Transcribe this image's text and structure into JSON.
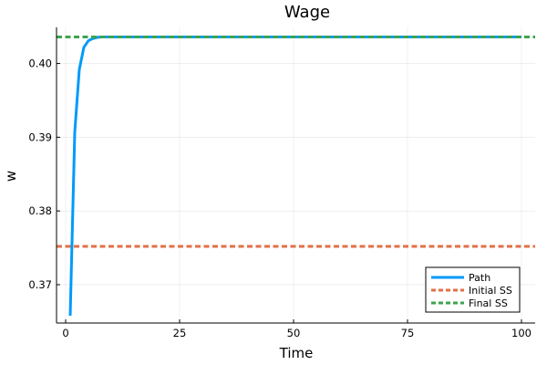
{
  "chart_data": {
    "type": "line",
    "title": "Wage",
    "xlabel": "Time",
    "ylabel": "w",
    "xlim": [
      -2,
      103
    ],
    "ylim": [
      0.3648,
      0.4049
    ],
    "xticks": [
      0,
      25,
      50,
      75,
      100
    ],
    "xtick_labels": [
      "0",
      "25",
      "50",
      "75",
      "100"
    ],
    "yticks": [
      0.37,
      0.38,
      0.39,
      0.4
    ],
    "ytick_labels": [
      "0.37",
      "0.38",
      "0.39",
      "0.40"
    ],
    "grid": true,
    "legend_position": "bottom-right",
    "series": [
      {
        "name": "Path",
        "color": "#009AFA",
        "style": "solid",
        "x": [
          1,
          2,
          3,
          4,
          5,
          6,
          7,
          8,
          9,
          10,
          15,
          20,
          30,
          40,
          50,
          60,
          70,
          80,
          90,
          100
        ],
        "y": [
          0.3658,
          0.3907,
          0.3992,
          0.4022,
          0.4031,
          0.4034,
          0.40355,
          0.4036,
          0.4036,
          0.4036,
          0.4036,
          0.4036,
          0.4036,
          0.4036,
          0.4036,
          0.4036,
          0.4036,
          0.4036,
          0.4036,
          0.4036
        ]
      },
      {
        "name": "Initial SS",
        "color": "#E36F47",
        "style": "dashed",
        "x": [
          -2,
          103
        ],
        "y": [
          0.3752,
          0.3752
        ]
      },
      {
        "name": "Final SS",
        "color": "#3EA44E",
        "style": "dashed",
        "x": [
          -2,
          103
        ],
        "y": [
          0.4036,
          0.4036
        ]
      }
    ]
  }
}
